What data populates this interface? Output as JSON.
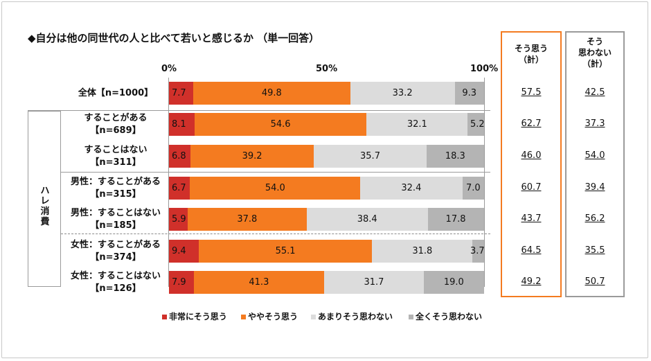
{
  "title": "◆自分は他の同世代の人と比べて若いと感じるか （単一回答）",
  "colors": [
    "#d0302a",
    "#f47b20",
    "#dcdcdc",
    "#b4b4b4"
  ],
  "group_label": [
    "ハ",
    "レ",
    "消",
    "費"
  ],
  "agree_header": [
    "そう思う",
    "（計）"
  ],
  "disagree_header": [
    "そう",
    "思わない",
    "（計）"
  ],
  "chart_data": {
    "type": "bar",
    "orientation": "horizontal",
    "stacked": true,
    "xlim": [
      0,
      100
    ],
    "ticks": [
      "0%",
      "50%",
      "100%"
    ],
    "legend": [
      "非常にそう思う",
      "ややそう思う",
      "あまりそう思わない",
      "全くそう思わない"
    ],
    "legend_position": "bottom",
    "categories": [
      [
        "全体【n=1000】"
      ],
      [
        "することがある",
        "【n=689】"
      ],
      [
        "することはない",
        "【n=311】"
      ],
      [
        "男性：することがある",
        "【n=315】"
      ],
      [
        "男性：することはない",
        "【n=185】"
      ],
      [
        "女性：することがある",
        "【n=374】"
      ],
      [
        "女性：することはない",
        "【n=126】"
      ]
    ],
    "series": [
      {
        "name": "非常にそう思う",
        "values": [
          7.7,
          8.1,
          6.8,
          6.7,
          5.9,
          9.4,
          7.9
        ]
      },
      {
        "name": "ややそう思う",
        "values": [
          49.8,
          54.6,
          39.2,
          54.0,
          37.8,
          55.1,
          41.3
        ]
      },
      {
        "name": "あまりそう思わない",
        "values": [
          33.2,
          32.1,
          35.7,
          32.4,
          38.4,
          31.8,
          31.7
        ]
      },
      {
        "name": "全くそう思わない",
        "values": [
          9.3,
          5.2,
          18.3,
          7.0,
          17.8,
          3.7,
          19.0
        ]
      }
    ],
    "labels": [
      [
        "7.7",
        "49.8",
        "33.2",
        "9.3"
      ],
      [
        "8.1",
        "54.6",
        "32.1",
        "5.2"
      ],
      [
        "6.8",
        "39.2",
        "35.7",
        "18.3"
      ],
      [
        "6.7",
        "54.0",
        "32.4",
        "7.0"
      ],
      [
        "5.9",
        "37.8",
        "38.4",
        "17.8"
      ],
      [
        "9.4",
        "55.1",
        "31.8",
        "3.7"
      ],
      [
        "7.9",
        "41.3",
        "31.7",
        "19.0"
      ]
    ],
    "agree_total": [
      "57.5",
      "62.7",
      "46.0",
      "60.7",
      "43.7",
      "64.5",
      "49.2"
    ],
    "disagree_total": [
      "42.5",
      "37.3",
      "54.0",
      "39.4",
      "56.2",
      "35.5",
      "50.7"
    ]
  }
}
